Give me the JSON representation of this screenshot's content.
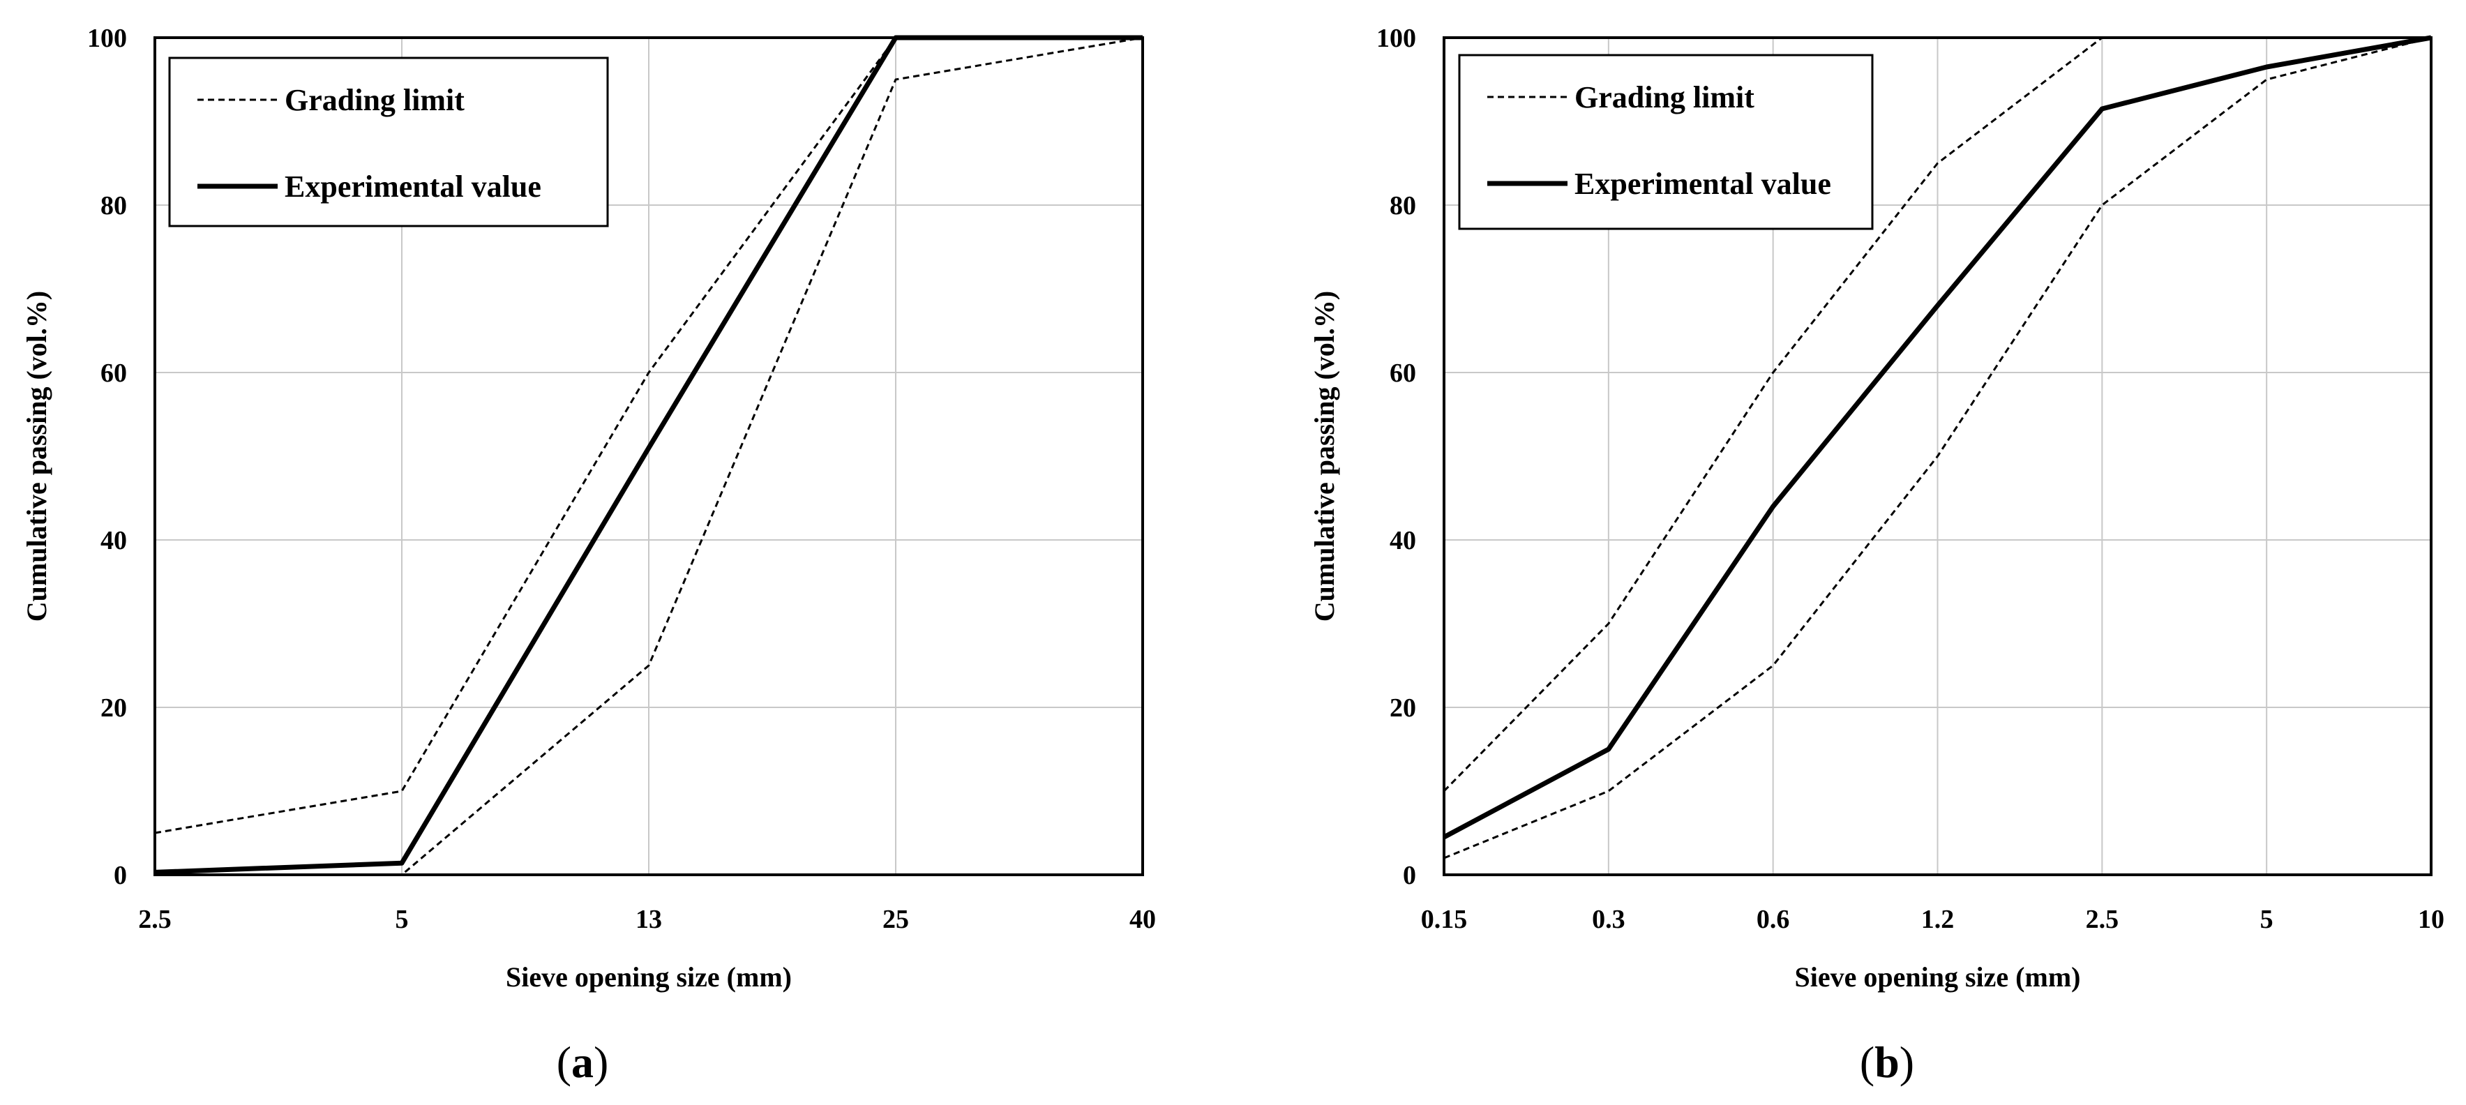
{
  "chart_data": [
    {
      "type": "line",
      "panel": "(a)",
      "panel_letter": "a",
      "xlabel": "Sieve opening size (mm)",
      "ylabel": "Cumulative passing (vol.%)",
      "categories": [
        "2.5",
        "5",
        "13",
        "25",
        "40"
      ],
      "ylim": [
        0,
        100
      ],
      "yticks": [
        "0",
        "20",
        "40",
        "60",
        "80",
        "100"
      ],
      "grid": true,
      "legend_position": "top-left",
      "series": [
        {
          "name": "Grading limit",
          "style": "dashed",
          "values": [
            5,
            10,
            60,
            100,
            100
          ],
          "legend": true
        },
        {
          "name": "Grading limit",
          "style": "dashed",
          "values": [
            0,
            0,
            25,
            95,
            100
          ],
          "legend": false
        },
        {
          "name": "Experimental value",
          "style": "solid",
          "values": [
            0.3,
            1.4,
            51,
            100,
            100
          ],
          "legend": true
        }
      ]
    },
    {
      "type": "line",
      "panel": "(b)",
      "panel_letter": "b",
      "xlabel": "Sieve opening size (mm)",
      "ylabel": "Cumulative passing (vol.%)",
      "categories": [
        "0.15",
        "0.3",
        "0.6",
        "1.2",
        "2.5",
        "5",
        "10"
      ],
      "ylim": [
        0,
        100
      ],
      "yticks": [
        "0",
        "20",
        "40",
        "60",
        "80",
        "100"
      ],
      "grid": true,
      "legend_position": "top-left",
      "series": [
        {
          "name": "Grading limit",
          "style": "dashed",
          "values": [
            10,
            30,
            60,
            85,
            100,
            100,
            100
          ],
          "legend": true
        },
        {
          "name": "Grading limit",
          "style": "dashed",
          "values": [
            2,
            10,
            25,
            50,
            80,
            95,
            100
          ],
          "legend": false
        },
        {
          "name": "Experimental value",
          "style": "solid",
          "values": [
            4.5,
            15,
            44,
            68,
            91.5,
            96.5,
            100
          ],
          "legend": true
        }
      ]
    }
  ]
}
